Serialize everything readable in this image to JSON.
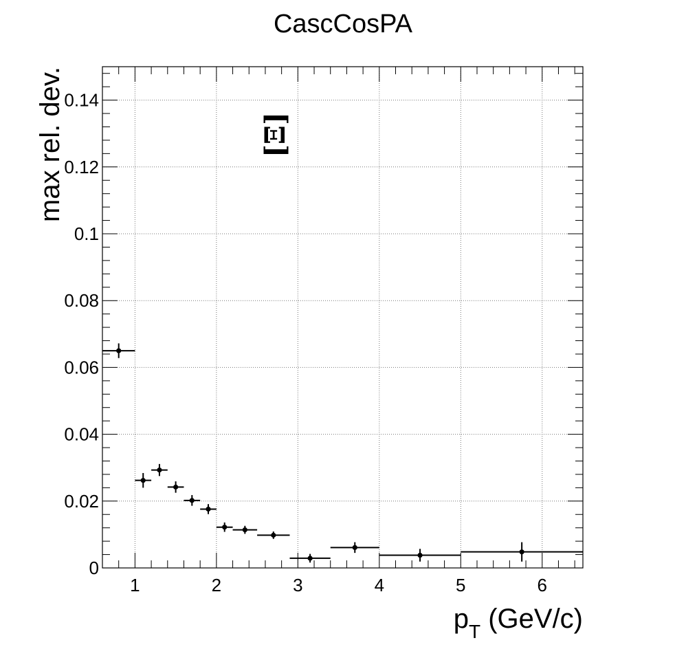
{
  "chart_data": {
    "type": "scatter",
    "title": "CascCosPA",
    "xlabel_main": "p",
    "xlabel_sub": "T",
    "xlabel_tail": " (GeV/c)",
    "ylabel": "max rel. dev.",
    "annotation": "[Ξ]",
    "xlim": [
      0.6,
      6.5
    ],
    "ylim": [
      0,
      0.15
    ],
    "xticks": [
      1,
      2,
      3,
      4,
      5,
      6
    ],
    "xtick_labels": [
      "1",
      "2",
      "3",
      "4",
      "5",
      "6"
    ],
    "yticks": [
      0,
      0.02,
      0.04,
      0.06,
      0.08,
      0.1,
      0.12,
      0.14
    ],
    "ytick_labels": [
      "0",
      "0.02",
      "0.04",
      "0.06",
      "0.08",
      "0.1",
      "0.12",
      "0.14"
    ],
    "grid": true,
    "series": [
      {
        "name": "max rel. dev.",
        "points": [
          {
            "x": 0.8,
            "xlo": 0.6,
            "xhi": 1.0,
            "y": 0.065,
            "yerr": 0.0022
          },
          {
            "x": 1.1,
            "xlo": 1.0,
            "xhi": 1.2,
            "y": 0.0262,
            "yerr": 0.0022
          },
          {
            "x": 1.3,
            "xlo": 1.2,
            "xhi": 1.4,
            "y": 0.0293,
            "yerr": 0.0018
          },
          {
            "x": 1.5,
            "xlo": 1.4,
            "xhi": 1.6,
            "y": 0.0242,
            "yerr": 0.0017
          },
          {
            "x": 1.7,
            "xlo": 1.6,
            "xhi": 1.8,
            "y": 0.0202,
            "yerr": 0.0016
          },
          {
            "x": 1.9,
            "xlo": 1.8,
            "xhi": 2.0,
            "y": 0.0176,
            "yerr": 0.0015
          },
          {
            "x": 2.1,
            "xlo": 2.0,
            "xhi": 2.2,
            "y": 0.0122,
            "yerr": 0.0014
          },
          {
            "x": 2.35,
            "xlo": 2.2,
            "xhi": 2.5,
            "y": 0.0114,
            "yerr": 0.0012
          },
          {
            "x": 2.7,
            "xlo": 2.5,
            "xhi": 2.9,
            "y": 0.0098,
            "yerr": 0.0011
          },
          {
            "x": 3.15,
            "xlo": 2.9,
            "xhi": 3.4,
            "y": 0.0029,
            "yerr": 0.0013
          },
          {
            "x": 3.7,
            "xlo": 3.4,
            "xhi": 4.0,
            "y": 0.0061,
            "yerr": 0.0016
          },
          {
            "x": 4.5,
            "xlo": 4.0,
            "xhi": 5.0,
            "y": 0.0038,
            "yerr": 0.0019
          },
          {
            "x": 5.75,
            "xlo": 5.0,
            "xhi": 6.5,
            "y": 0.0048,
            "yerr": 0.0029
          }
        ]
      }
    ]
  }
}
